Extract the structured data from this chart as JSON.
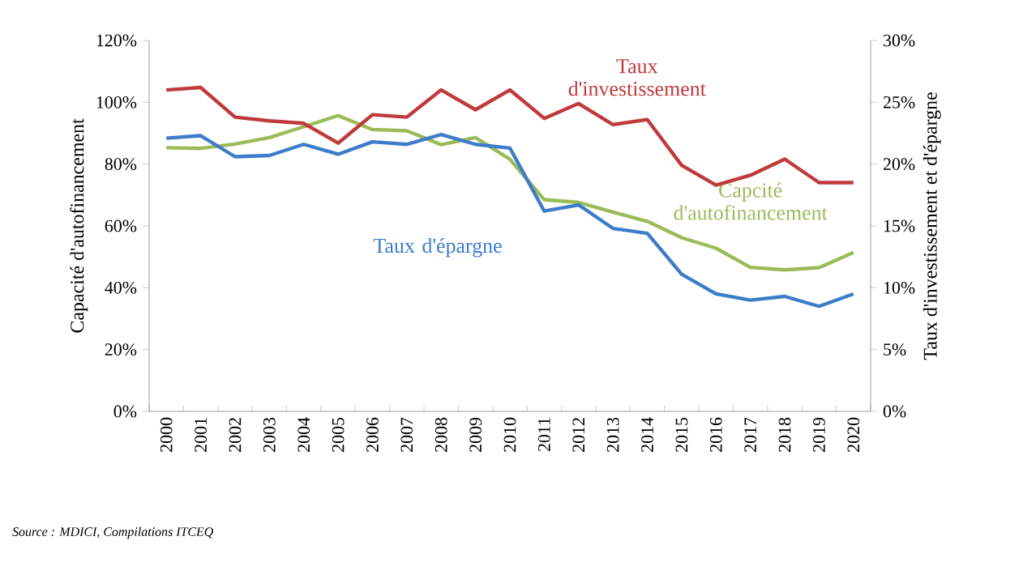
{
  "chart_data": {
    "type": "line",
    "categories": [
      "2000",
      "2001",
      "2002",
      "2003",
      "2004",
      "2005",
      "2006",
      "2007",
      "2008",
      "2009",
      "2010",
      "2011",
      "2012",
      "2013",
      "2014",
      "2015",
      "2016",
      "2017",
      "2018",
      "2019",
      "2020"
    ],
    "ylabel": "Capacité d'autofinancement",
    "y2label": "Taux d'investissement et d'épargne",
    "ylim": [
      0,
      120
    ],
    "yticks": [
      {
        "value": 0,
        "label": "0%"
      },
      {
        "value": 20,
        "label": "20%"
      },
      {
        "value": 40,
        "label": "40%"
      },
      {
        "value": 60,
        "label": "60%"
      },
      {
        "value": 80,
        "label": "80%"
      },
      {
        "value": 100,
        "label": "100%"
      },
      {
        "value": 120,
        "label": "120%"
      }
    ],
    "y2lim": [
      0,
      30
    ],
    "y2ticks": [
      {
        "value": 0,
        "label": "0%"
      },
      {
        "value": 5,
        "label": "5%"
      },
      {
        "value": 10,
        "label": "10%"
      },
      {
        "value": 15,
        "label": "15%"
      },
      {
        "value": 20,
        "label": "20%"
      },
      {
        "value": 25,
        "label": "25%"
      },
      {
        "value": 30,
        "label": "30%"
      }
    ],
    "series": [
      {
        "name": "Taux d'investissement",
        "color": "#c0393b",
        "axis": "y2",
        "values": [
          26.0,
          26.2,
          23.8,
          23.5,
          23.3,
          21.7,
          24.0,
          23.8,
          26.0,
          24.4,
          26.0,
          23.7,
          24.9,
          23.2,
          23.6,
          19.9,
          18.3,
          19.1,
          20.4,
          18.5,
          18.5
        ]
      },
      {
        "name": "Taux d'épargne",
        "color": "#3d7cc9",
        "axis": "y2",
        "values": [
          22.1,
          22.3,
          20.6,
          20.7,
          21.6,
          20.8,
          21.8,
          21.6,
          22.4,
          21.6,
          21.3,
          16.2,
          16.7,
          14.8,
          14.4,
          11.1,
          9.5,
          9.0,
          9.3,
          8.5,
          9.5
        ]
      },
      {
        "name": "Capcité d'autofinancement",
        "color": "#9bbb59",
        "axis": "y",
        "values": [
          85.3,
          85.1,
          86.5,
          88.6,
          92.1,
          95.7,
          91.2,
          90.8,
          86.3,
          88.6,
          81.6,
          68.5,
          67.6,
          64.5,
          61.5,
          56.2,
          52.8,
          46.6,
          45.8,
          46.5,
          51.4
        ]
      }
    ],
    "annotations": [
      "*Source : MDICI, Compilations ITCEQ*"
    ],
    "legend": false,
    "grid": false,
    "marker": "none",
    "line_style": "solid"
  }
}
